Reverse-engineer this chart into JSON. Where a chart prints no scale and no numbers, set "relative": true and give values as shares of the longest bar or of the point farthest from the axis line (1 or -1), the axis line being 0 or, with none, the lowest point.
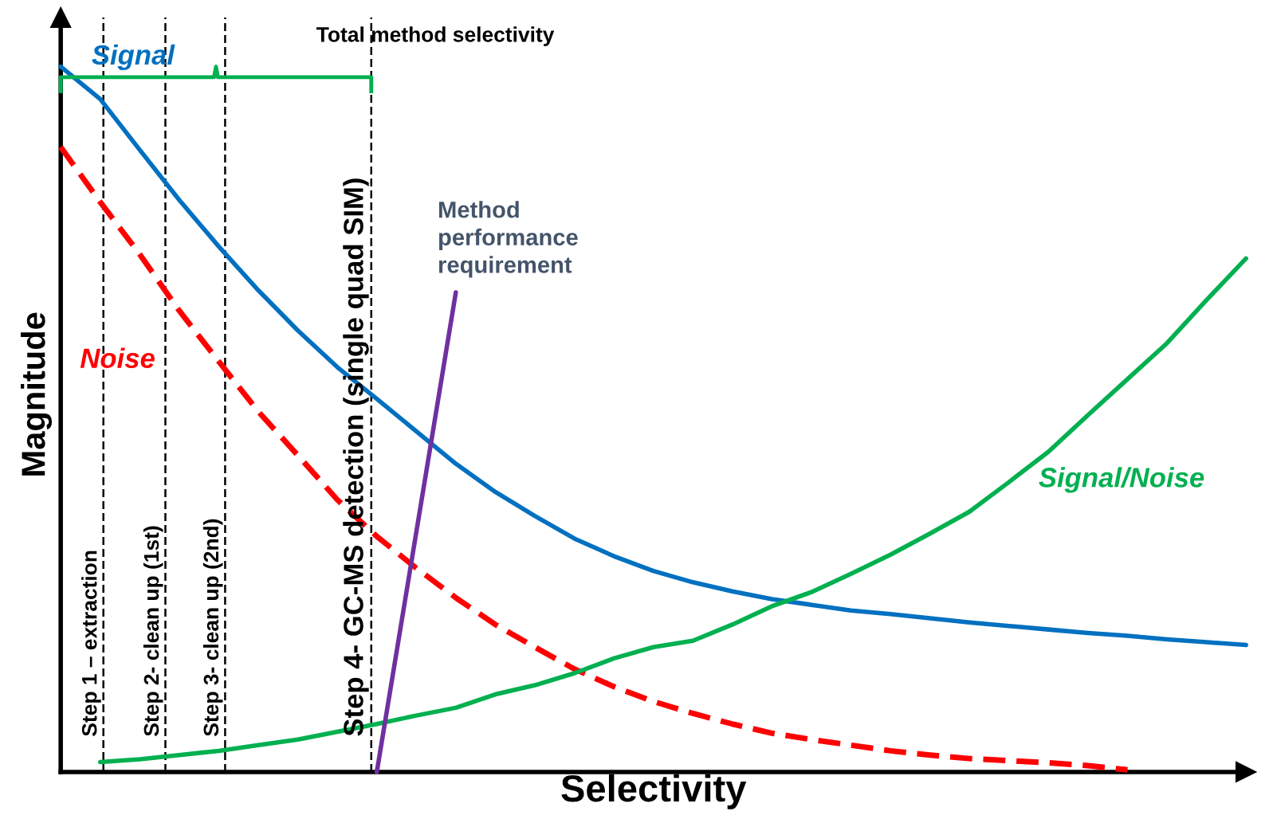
{
  "chart_data": {
    "type": "line",
    "relative": true,
    "xlabel": "Selectivity",
    "ylabel": "Magnitude",
    "tick_labels": false,
    "legend": false,
    "marker": "none",
    "categories": [
      null,
      null,
      null,
      null,
      null,
      null,
      null,
      null,
      null,
      null,
      null,
      null,
      null,
      null,
      null,
      null,
      null,
      null,
      null,
      null,
      null,
      null,
      null,
      null,
      null,
      null,
      null,
      null,
      null,
      null,
      null
    ],
    "series": [
      {
        "name": "Signal",
        "color": "#0070c0",
        "line_style": "solid",
        "values": [
          1.0,
          0.954,
          0.882,
          0.811,
          0.745,
          0.683,
          0.626,
          0.574,
          0.529,
          0.483,
          0.437,
          0.397,
          0.363,
          0.331,
          0.306,
          0.285,
          0.269,
          0.256,
          0.245,
          0.237,
          0.229,
          0.224,
          0.218,
          0.212,
          0.207,
          0.202,
          0.197,
          0.193,
          0.188,
          0.184,
          0.18
        ]
      },
      {
        "name": "Noise",
        "color": "#ff0000",
        "line_style": "dashed",
        "values": [
          0.886,
          0.808,
          0.734,
          0.654,
          0.582,
          0.511,
          0.449,
          0.386,
          0.334,
          0.289,
          0.247,
          0.209,
          0.177,
          0.146,
          0.121,
          0.1,
          0.083,
          0.068,
          0.055,
          0.046,
          0.038,
          0.03,
          0.024,
          0.019,
          0.016,
          0.013,
          0.009,
          0.003,
          null,
          null,
          null
        ]
      },
      {
        "name": "Signal/Noise",
        "color": "#00b050",
        "line_style": "solid",
        "values": [
          null,
          0.014,
          0.018,
          0.024,
          0.03,
          0.038,
          0.046,
          0.057,
          0.068,
          0.08,
          0.091,
          0.11,
          0.123,
          0.14,
          0.161,
          0.177,
          0.186,
          0.209,
          0.235,
          0.255,
          0.281,
          0.308,
          0.338,
          0.369,
          0.411,
          0.454,
          0.506,
          0.557,
          0.608,
          0.669,
          0.728
        ]
      },
      {
        "color": "#7030a0",
        "line_style": "solid",
        "values": [
          null,
          null,
          null,
          null,
          null,
          null,
          null,
          null,
          0,
          null,
          0.68,
          null,
          null,
          null,
          null,
          null,
          null,
          null,
          null,
          null,
          null,
          null,
          null,
          null,
          null,
          null,
          null,
          null,
          null,
          null,
          null
        ]
      }
    ],
    "annotations": [
      "Total method selectivity",
      "Method\nperformance\nrequirement",
      "Step 1 – extraction",
      "Step 2- clean up (1st)",
      "Step 3- clean up (2nd)",
      "Step 4- GC-MS detection (single quad SIM)"
    ]
  }
}
